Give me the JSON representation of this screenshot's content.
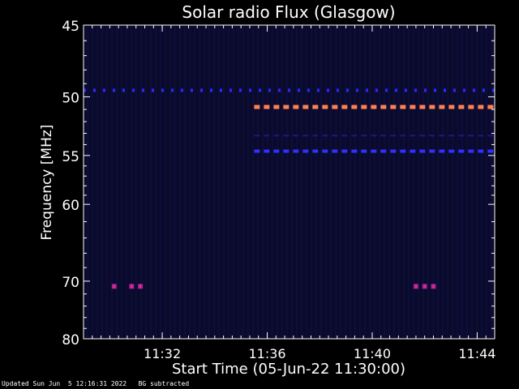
{
  "chart_data": {
    "type": "heatmap",
    "title": "Solar radio Flux (Glasgow)",
    "xlabel": "Start Time (05-Jun-22 11:30:00)",
    "ylabel": "Frequency [MHz]",
    "x_range_minutes": [
      "11:29",
      "11:44:40"
    ],
    "y_range_mhz": [
      45,
      80
    ],
    "y_scale": "reciprocal",
    "x_ticks": [
      "11:32",
      "11:36",
      "11:40",
      "11:44"
    ],
    "y_ticks": [
      "45",
      "50",
      "55",
      "60",
      "70",
      "80"
    ],
    "features": [
      {
        "kind": "band",
        "freq_mhz": 49.5,
        "t_start": "11:29",
        "t_end": "11:44:40",
        "color": "#2a2aff",
        "intensity": "low"
      },
      {
        "kind": "band",
        "freq_mhz": 50.8,
        "t_start": "11:35:30",
        "t_end": "11:44:40",
        "color": "#ff8050",
        "intensity": "high"
      },
      {
        "kind": "band",
        "freq_mhz": 54.6,
        "t_start": "11:35:30",
        "t_end": "11:44:40",
        "color": "#3030ff",
        "intensity": "medium"
      },
      {
        "kind": "band",
        "freq_mhz": 53.2,
        "t_start": "11:35:30",
        "t_end": "11:44:40",
        "color": "#1a1a80",
        "intensity": "faint"
      },
      {
        "kind": "spot",
        "freq_mhz": 70.8,
        "t": "11:30:10",
        "color": "#a020a0"
      },
      {
        "kind": "spot",
        "freq_mhz": 70.8,
        "t": "11:30:50",
        "color": "#a020a0"
      },
      {
        "kind": "spot",
        "freq_mhz": 70.8,
        "t": "11:31:10",
        "color": "#a020a0"
      },
      {
        "kind": "spot",
        "freq_mhz": 70.8,
        "t": "11:41:40",
        "color": "#a020a0"
      },
      {
        "kind": "spot",
        "freq_mhz": 70.8,
        "t": "11:42:00",
        "color": "#a020a0"
      },
      {
        "kind": "spot",
        "freq_mhz": 70.8,
        "t": "11:42:20",
        "color": "#a020a0"
      }
    ],
    "background": "#0a0a2a",
    "grid": false,
    "legend": "none"
  },
  "footer": {
    "text": "Updated Sun Jun  5 12:16:31 2022   BG subtracted"
  }
}
